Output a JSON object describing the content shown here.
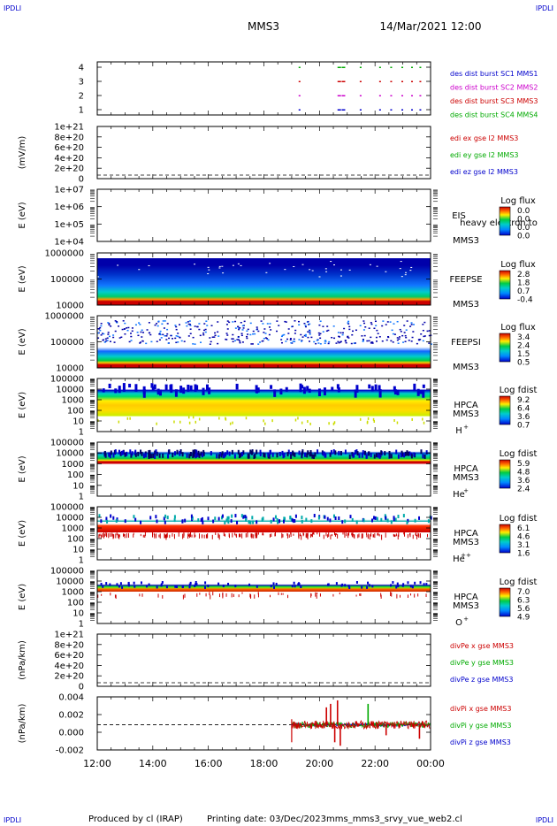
{
  "header": {
    "corner_tl": "IPDLI",
    "corner_tr": "IPDLI",
    "corner_bl": "IPDLI",
    "corner_br": "IPDLI",
    "spacecraft": "MMS3",
    "date_time": "14/Mar/2021 12:00"
  },
  "footer": {
    "produced_by": "Produced by cl (IRAP)",
    "printing_date": "Printing date: 03/Dec/2023",
    "script_name": "mms_mms3_srvy_vue_web2.cl"
  },
  "time_axis": {
    "tick_labels": [
      "12:00",
      "14:00",
      "16:00",
      "18:00",
      "20:00",
      "22:00",
      "00:00"
    ],
    "range_hours": [
      12,
      24
    ]
  },
  "chart_data": [
    {
      "id": "burst",
      "type": "scatter",
      "yticks": [
        "4",
        "3",
        "2",
        "1"
      ],
      "legend": [
        {
          "text": "des dist burst SC1 MMS1",
          "color": "#0000cc"
        },
        {
          "text": "des dist burst SC2 MMS2",
          "color": "#cc00cc"
        },
        {
          "text": "des dist burst SC3 MMS3",
          "color": "#cc0000"
        },
        {
          "text": "des dist burst SC4 MMS4",
          "color": "#00aa00"
        }
      ],
      "series": [
        {
          "level": 4,
          "color": "#00aa00",
          "x": [
            19.25,
            20.65,
            20.8,
            21.45,
            22.15,
            22.55,
            22.95,
            23.3,
            23.6
          ]
        },
        {
          "level": 3,
          "color": "#cc0000",
          "x": [
            19.25,
            20.65,
            20.8,
            21.45,
            22.15,
            22.55,
            22.95,
            23.3,
            23.6
          ]
        },
        {
          "level": 2,
          "color": "#cc00cc",
          "x": [
            19.25,
            20.65,
            20.8,
            21.45,
            22.15,
            22.55,
            22.95,
            23.3,
            23.6
          ]
        },
        {
          "level": 1,
          "color": "#0000cc",
          "x": [
            19.25,
            20.65,
            20.8,
            21.45,
            22.15,
            22.55,
            22.95,
            23.3,
            23.6
          ]
        }
      ]
    },
    {
      "id": "edi",
      "type": "line",
      "ylabel": "(mV/m)",
      "yticks": [
        "1e+21",
        "8e+20",
        "6e+20",
        "4e+20",
        "2e+20",
        "0"
      ],
      "legend": [
        {
          "text": "edi ex gse l2 MMS3",
          "color": "#cc0000"
        },
        {
          "text": "edi ey gse l2 MMS3",
          "color": "#00aa00"
        },
        {
          "text": "edi ez gse l2 MMS3",
          "color": "#0000cc"
        }
      ]
    },
    {
      "id": "eis",
      "type": "heatmap",
      "ylabel": "E (eV)",
      "yticks": [
        "1e+07",
        "1e+06",
        "1e+05",
        "1e+04"
      ],
      "instrument": "EIS",
      "overlay": "heavy electron to",
      "spacecraft": "MMS3",
      "colorbar": {
        "title": "Log flux",
        "labels": [
          "0.0",
          "0.0",
          "0.0",
          "0.0"
        ]
      }
    },
    {
      "id": "feepse",
      "type": "heatmap",
      "ylabel": "E (eV)",
      "yticks": [
        "1000000",
        "100000",
        "10000"
      ],
      "instrument": "FEEPSE",
      "spacecraft": "MMS3",
      "colorbar": {
        "title": "Log flux",
        "labels": [
          "2.8",
          "1.8",
          "0.7",
          "-0.4"
        ]
      }
    },
    {
      "id": "feepsi",
      "type": "heatmap",
      "ylabel": "E (eV)",
      "yticks": [
        "1000000",
        "100000",
        "10000"
      ],
      "instrument": "FEEPSI",
      "spacecraft": "MMS3",
      "colorbar": {
        "title": "Log flux",
        "labels": [
          "3.4",
          "2.4",
          "1.5",
          "0.5"
        ]
      }
    },
    {
      "id": "hpca_h",
      "type": "heatmap",
      "ylabel": "E (eV)",
      "yticks": [
        "100000",
        "10000",
        "1000",
        "100",
        "10",
        "1"
      ],
      "instrument": "HPCA",
      "spacecraft": "MMS3",
      "species": "H",
      "charge": "+",
      "colorbar": {
        "title": "Log fdist",
        "labels": [
          "9.2",
          "6.4",
          "3.6",
          "0.7"
        ]
      }
    },
    {
      "id": "hpca_he1",
      "type": "heatmap",
      "ylabel": "E (eV)",
      "yticks": [
        "100000",
        "10000",
        "1000",
        "100",
        "10",
        "1"
      ],
      "instrument": "HPCA",
      "spacecraft": "MMS3",
      "species": "He",
      "charge": "+",
      "colorbar": {
        "title": "Log fdist",
        "labels": [
          "5.9",
          "4.8",
          "3.6",
          "2.4"
        ]
      }
    },
    {
      "id": "hpca_he2",
      "type": "heatmap",
      "ylabel": "E (eV)",
      "yticks": [
        "100000",
        "10000",
        "1000",
        "100",
        "10",
        "1"
      ],
      "instrument": "HPCA",
      "spacecraft": "MMS3",
      "species": "He",
      "charge": "++",
      "colorbar": {
        "title": "Log fdist",
        "labels": [
          "6.1",
          "4.6",
          "3.1",
          "1.6"
        ]
      }
    },
    {
      "id": "hpca_o",
      "type": "heatmap",
      "ylabel": "E (eV)",
      "yticks": [
        "100000",
        "10000",
        "1000",
        "100",
        "10",
        "1"
      ],
      "instrument": "HPCA",
      "spacecraft": "MMS3",
      "species": "O",
      "charge": "+",
      "colorbar": {
        "title": "Log fdist",
        "labels": [
          "7.0",
          "6.3",
          "5.6",
          "4.9"
        ]
      }
    },
    {
      "id": "divpe",
      "type": "line",
      "ylabel": "(nPa/km)",
      "yticks": [
        "1e+21",
        "8e+20",
        "6e+20",
        "4e+20",
        "2e+20",
        "0"
      ],
      "legend": [
        {
          "text": "divPe x gse MMS3",
          "color": "#cc0000"
        },
        {
          "text": "divPe y gse MMS3",
          "color": "#00aa00"
        },
        {
          "text": "divPe z gse MMS3",
          "color": "#0000cc"
        }
      ]
    },
    {
      "id": "divpi",
      "type": "line",
      "ylabel": "(nPa/km)",
      "yticks": [
        "0.004",
        "0.002",
        "0.000",
        "-0.002"
      ],
      "ylim": [
        -0.0036,
        0.004
      ],
      "data_start_hour": 19.0,
      "legend": [
        {
          "text": "divPi x gse MMS3",
          "color": "#cc0000"
        },
        {
          "text": "divPi y gse MMS3",
          "color": "#00aa00"
        },
        {
          "text": "divPi z gse MMS3",
          "color": "#0000cc"
        }
      ],
      "spikes": [
        {
          "x": 20.25,
          "y": 0.0025,
          "color": "#cc0000"
        },
        {
          "x": 20.4,
          "y": 0.003,
          "color": "#cc0000"
        },
        {
          "x": 20.55,
          "y": -0.0025,
          "color": "#cc0000"
        },
        {
          "x": 20.65,
          "y": 0.0035,
          "color": "#cc0000"
        },
        {
          "x": 20.75,
          "y": -0.003,
          "color": "#cc0000"
        },
        {
          "x": 21.75,
          "y": 0.003,
          "color": "#00aa00"
        },
        {
          "x": 22.4,
          "y": -0.0015,
          "color": "#cc0000"
        },
        {
          "x": 23.6,
          "y": -0.002,
          "color": "#cc0000"
        }
      ]
    }
  ]
}
